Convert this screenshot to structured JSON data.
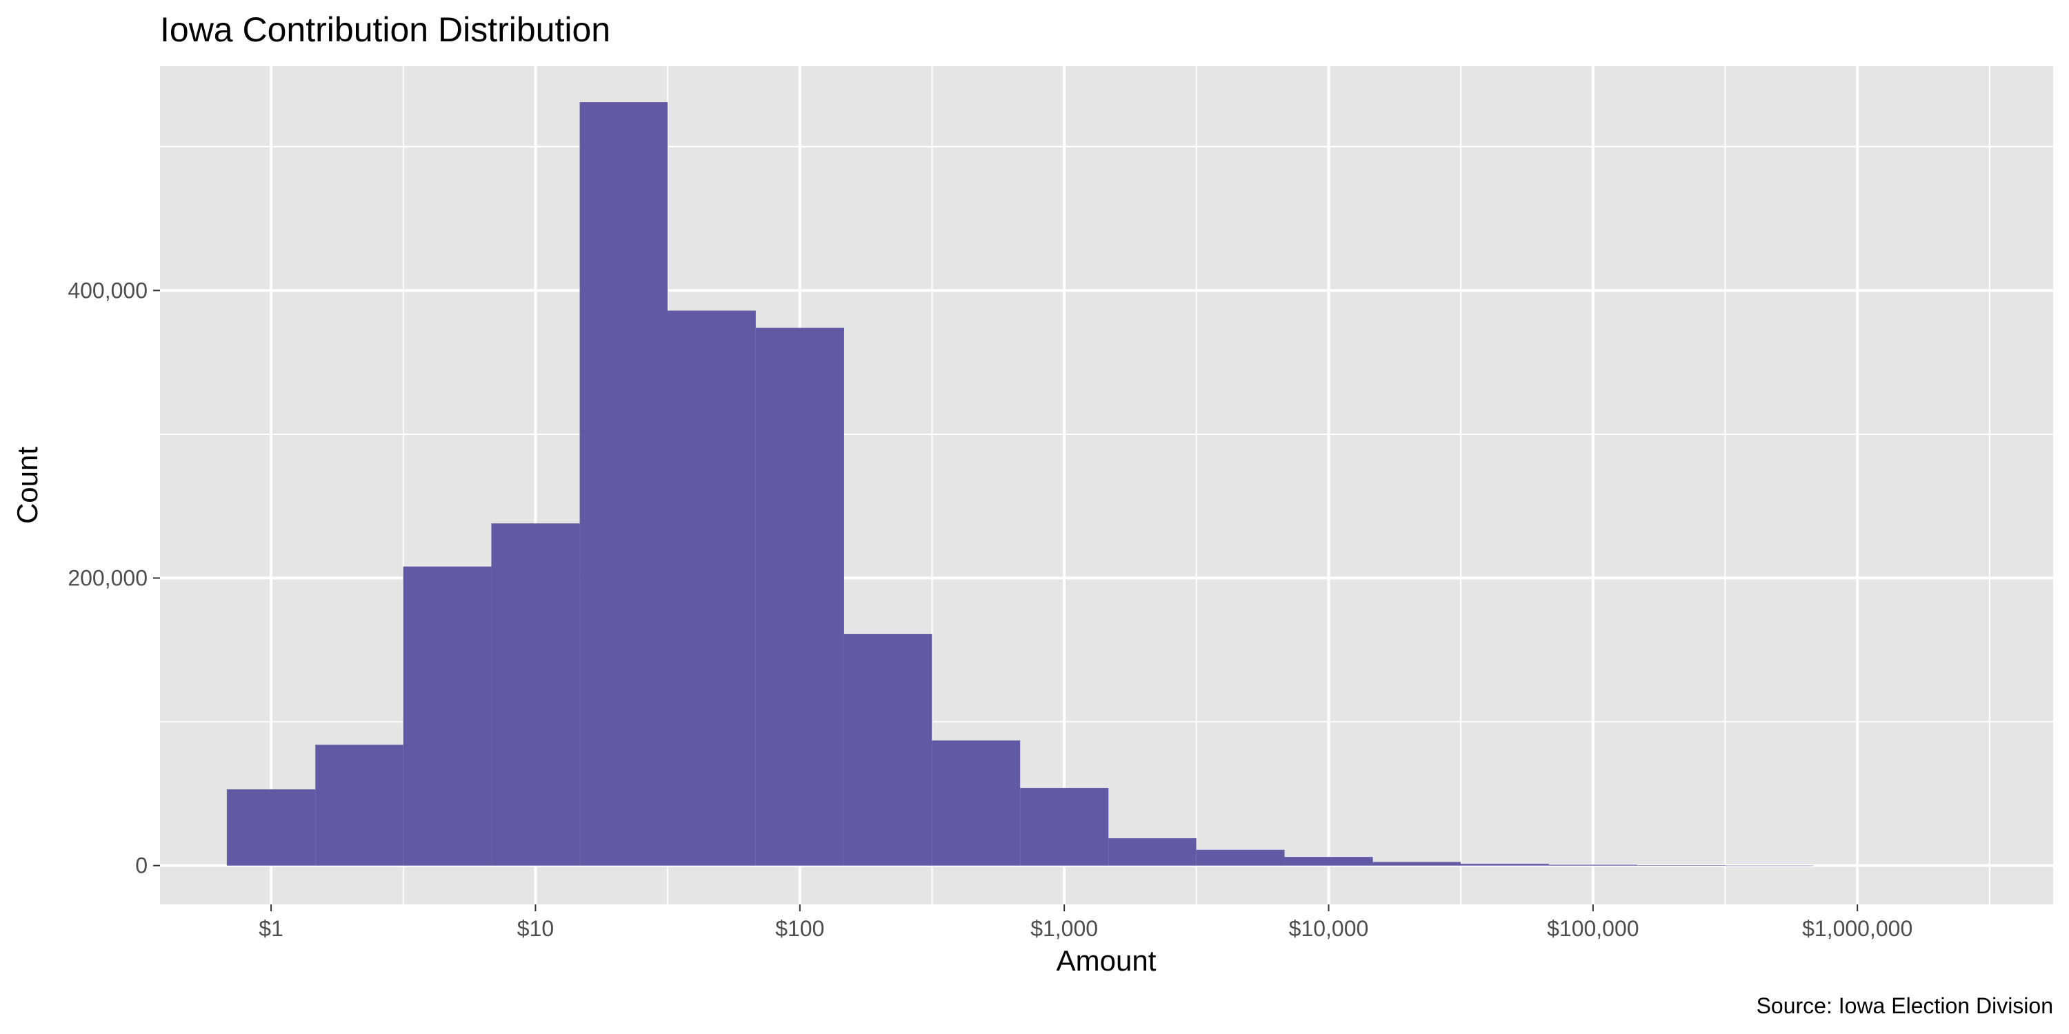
{
  "chart_data": {
    "type": "bar",
    "title": "Iowa Contribution Distribution",
    "xlabel": "Amount",
    "ylabel": "Count",
    "caption": "Source: Iowa Election Division",
    "x_scale": "log10",
    "xlim": [
      0.38,
      5500000
    ],
    "ylim": [
      -27000,
      556000
    ],
    "bar_color": "#6159a3",
    "panel_color": "#e5e5e5",
    "grid": true,
    "legend": "none",
    "x_ticks": [
      {
        "value": 1,
        "label": "$1"
      },
      {
        "value": 10,
        "label": "$10"
      },
      {
        "value": 100,
        "label": "$100"
      },
      {
        "value": 1000,
        "label": "$1,000"
      },
      {
        "value": 10000,
        "label": "$10,000"
      },
      {
        "value": 100000,
        "label": "$100,000"
      },
      {
        "value": 1000000,
        "label": "$1,000,000"
      }
    ],
    "y_ticks": [
      {
        "value": 0,
        "label": "0"
      },
      {
        "value": 200000,
        "label": "200,000"
      },
      {
        "value": 400000,
        "label": "400,000"
      }
    ],
    "bins": [
      {
        "x0": 0.68,
        "x1": 1.47,
        "count": 53000
      },
      {
        "x0": 1.47,
        "x1": 3.16,
        "count": 84000
      },
      {
        "x0": 3.16,
        "x1": 6.81,
        "count": 208000
      },
      {
        "x0": 6.81,
        "x1": 14.7,
        "count": 238000
      },
      {
        "x0": 14.7,
        "x1": 31.6,
        "count": 531000
      },
      {
        "x0": 31.6,
        "x1": 68.1,
        "count": 386000
      },
      {
        "x0": 68.1,
        "x1": 147,
        "count": 374000
      },
      {
        "x0": 147,
        "x1": 316,
        "count": 161000
      },
      {
        "x0": 316,
        "x1": 681,
        "count": 87000
      },
      {
        "x0": 681,
        "x1": 1470,
        "count": 54000
      },
      {
        "x0": 1470,
        "x1": 3160,
        "count": 19000
      },
      {
        "x0": 3160,
        "x1": 6810,
        "count": 11000
      },
      {
        "x0": 6810,
        "x1": 14700,
        "count": 6000
      },
      {
        "x0": 14700,
        "x1": 31600,
        "count": 2500
      },
      {
        "x0": 31600,
        "x1": 68100,
        "count": 1200
      },
      {
        "x0": 68100,
        "x1": 147000,
        "count": 600
      },
      {
        "x0": 147000,
        "x1": 316000,
        "count": 300
      },
      {
        "x0": 316000,
        "x1": 681000,
        "count": 0
      }
    ]
  }
}
